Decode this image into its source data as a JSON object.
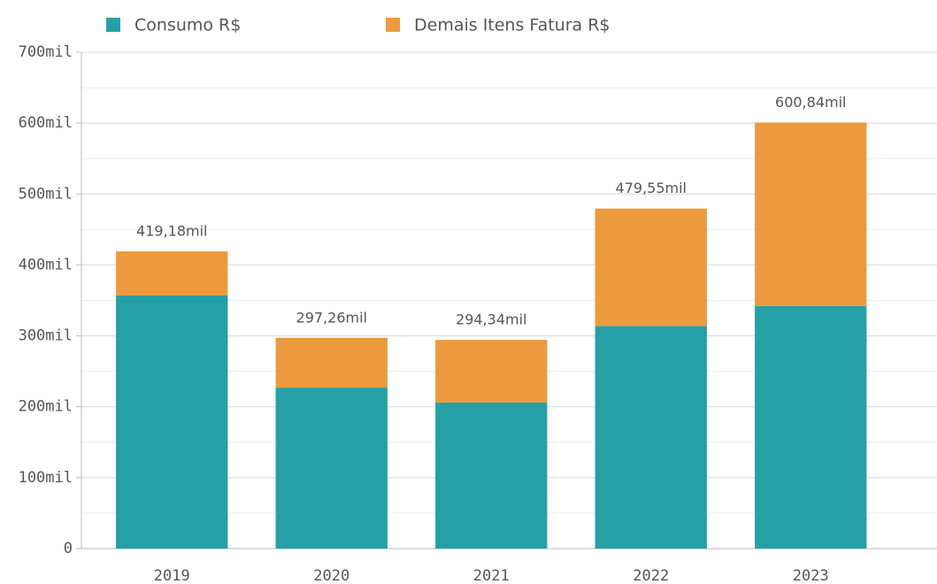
{
  "chart_data": {
    "type": "stacked_bar",
    "categories": [
      "2019",
      "2020",
      "2021",
      "2022",
      "2023"
    ],
    "series": [
      {
        "name": "Consumo R$",
        "color": "#26a0a7",
        "values": [
          357,
          227,
          206,
          314,
          342
        ]
      },
      {
        "name": "Demais Itens Fatura R$",
        "color": "#ec9a3e",
        "values": [
          62.18,
          70.26,
          88.34,
          165.55,
          258.84
        ]
      }
    ],
    "totals": [
      419.18,
      297.26,
      294.34,
      479.55,
      600.84
    ],
    "total_labels": [
      "419,18mil",
      "297,26mil",
      "294,34mil",
      "479,55mil",
      "600,84mil"
    ],
    "ylim": [
      0,
      700
    ],
    "yticks": [
      0,
      {
        "value": 100,
        "label": "100mil"
      },
      {
        "value": 200,
        "label": "200mil"
      },
      {
        "value": 300,
        "label": "300mil"
      },
      {
        "value": 400,
        "label": "400mil"
      },
      {
        "value": 500,
        "label": "500mil"
      },
      {
        "value": 600,
        "label": "600mil"
      },
      {
        "value": 700,
        "label": "700mil"
      }
    ],
    "minor_yticks": [
      50,
      150,
      250,
      350,
      450,
      550,
      650
    ],
    "grid": true,
    "legend": "top"
  }
}
